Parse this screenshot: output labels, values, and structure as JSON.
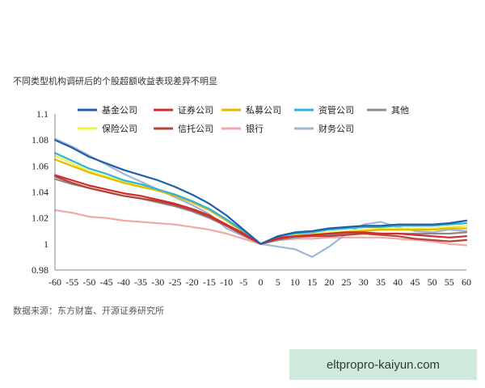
{
  "title": "不同类型机构调研后的个股超额收益表现差异不明显",
  "source": "数据来源：东方财富、开源证券研究所",
  "watermark": "eltpropro-kaiyun.com",
  "chart_data": {
    "type": "line",
    "title": "不同类型机构调研后的个股超额收益表现差异不明显",
    "xlabel": "",
    "ylabel": "",
    "xlim": [
      -60,
      60
    ],
    "ylim": [
      0.98,
      1.1
    ],
    "x_ticks": [
      -60,
      -55,
      -50,
      -45,
      -40,
      -35,
      -30,
      -25,
      -20,
      -15,
      -10,
      -5,
      0,
      5,
      10,
      15,
      20,
      25,
      30,
      35,
      40,
      45,
      50,
      55,
      60
    ],
    "y_ticks": [
      0.98,
      1,
      1.02,
      1.04,
      1.06,
      1.08,
      1.1
    ],
    "x_tick_labels": [
      "-60",
      "-55",
      "-50",
      "-45",
      "-40",
      "-35",
      "-30",
      "-25",
      "-20",
      "-15",
      "-10",
      "-5",
      "0",
      "5",
      "10",
      "15",
      "20",
      "25",
      "30",
      "35",
      "40",
      "45",
      "50",
      "55",
      "60"
    ],
    "y_tick_labels": [
      "0.98",
      "1",
      "1.02",
      "1.04",
      "1.06",
      "1.08",
      "1.1"
    ],
    "legend_position": "top",
    "x": [
      -60,
      -55,
      -50,
      -45,
      -40,
      -35,
      -30,
      -25,
      -20,
      -15,
      -10,
      -5,
      0,
      5,
      10,
      15,
      20,
      25,
      30,
      35,
      40,
      45,
      50,
      55,
      60
    ],
    "series": [
      {
        "name": "基金公司",
        "color": "#1f5fa8",
        "values": [
          1.08,
          1.074,
          1.067,
          1.062,
          1.057,
          1.053,
          1.049,
          1.044,
          1.038,
          1.031,
          1.022,
          1.011,
          1.0,
          1.006,
          1.009,
          1.01,
          1.012,
          1.013,
          1.014,
          1.014,
          1.015,
          1.015,
          1.015,
          1.016,
          1.018
        ]
      },
      {
        "name": "证券公司",
        "color": "#d42a2a",
        "values": [
          1.053,
          1.049,
          1.045,
          1.042,
          1.039,
          1.037,
          1.034,
          1.031,
          1.027,
          1.022,
          1.015,
          1.008,
          1.0,
          1.004,
          1.006,
          1.007,
          1.008,
          1.009,
          1.009,
          1.008,
          1.008,
          1.007,
          1.006,
          1.005,
          1.006
        ]
      },
      {
        "name": "私募公司",
        "color": "#e8b800",
        "values": [
          1.065,
          1.06,
          1.055,
          1.051,
          1.047,
          1.044,
          1.041,
          1.037,
          1.032,
          1.026,
          1.018,
          1.009,
          1.0,
          1.004,
          1.006,
          1.007,
          1.008,
          1.009,
          1.01,
          1.011,
          1.011,
          1.011,
          1.011,
          1.012,
          1.012
        ]
      },
      {
        "name": "资管公司",
        "color": "#2bb5d8",
        "values": [
          1.07,
          1.064,
          1.058,
          1.054,
          1.049,
          1.046,
          1.042,
          1.038,
          1.033,
          1.027,
          1.019,
          1.01,
          1.0,
          1.006,
          1.008,
          1.009,
          1.011,
          1.012,
          1.013,
          1.013,
          1.014,
          1.014,
          1.014,
          1.015,
          1.016
        ]
      },
      {
        "name": "其他",
        "color": "#8c8c8c",
        "values": [
          1.05,
          1.046,
          1.043,
          1.04,
          1.037,
          1.035,
          1.032,
          1.029,
          1.025,
          1.02,
          1.014,
          1.007,
          1.0,
          1.003,
          1.005,
          1.006,
          1.007,
          1.008,
          1.008,
          1.008,
          1.008,
          1.008,
          1.008,
          1.008,
          1.009
        ]
      },
      {
        "name": "保险公司",
        "color": "#f2f24a",
        "values": [
          1.068,
          1.062,
          1.056,
          1.052,
          1.048,
          1.045,
          1.042,
          1.038,
          1.033,
          1.027,
          1.019,
          1.01,
          1.0,
          1.005,
          1.007,
          1.008,
          1.009,
          1.01,
          1.011,
          1.012,
          1.012,
          1.012,
          1.012,
          1.013,
          1.014
        ]
      },
      {
        "name": "信托公司",
        "color": "#b5443a",
        "values": [
          1.052,
          1.047,
          1.043,
          1.04,
          1.037,
          1.035,
          1.033,
          1.03,
          1.026,
          1.021,
          1.014,
          1.007,
          1.0,
          1.005,
          1.006,
          1.006,
          1.006,
          1.007,
          1.008,
          1.007,
          1.006,
          1.004,
          1.003,
          1.002,
          1.003
        ]
      },
      {
        "name": "银行",
        "color": "#f2a8a8",
        "values": [
          1.026,
          1.024,
          1.021,
          1.02,
          1.018,
          1.017,
          1.016,
          1.015,
          1.013,
          1.011,
          1.008,
          1.004,
          1.0,
          1.003,
          1.004,
          1.004,
          1.005,
          1.005,
          1.005,
          1.005,
          1.004,
          1.003,
          1.002,
          1.0,
          0.999
        ]
      },
      {
        "name": "财务公司",
        "color": "#9fb6d8",
        "values": [
          1.081,
          1.075,
          1.068,
          1.061,
          1.054,
          1.048,
          1.042,
          1.036,
          1.03,
          1.023,
          1.012,
          1.006,
          1.0,
          0.998,
          0.996,
          0.99,
          0.998,
          1.008,
          1.015,
          1.017,
          1.013,
          1.01,
          1.009,
          1.011,
          1.01
        ]
      }
    ]
  }
}
